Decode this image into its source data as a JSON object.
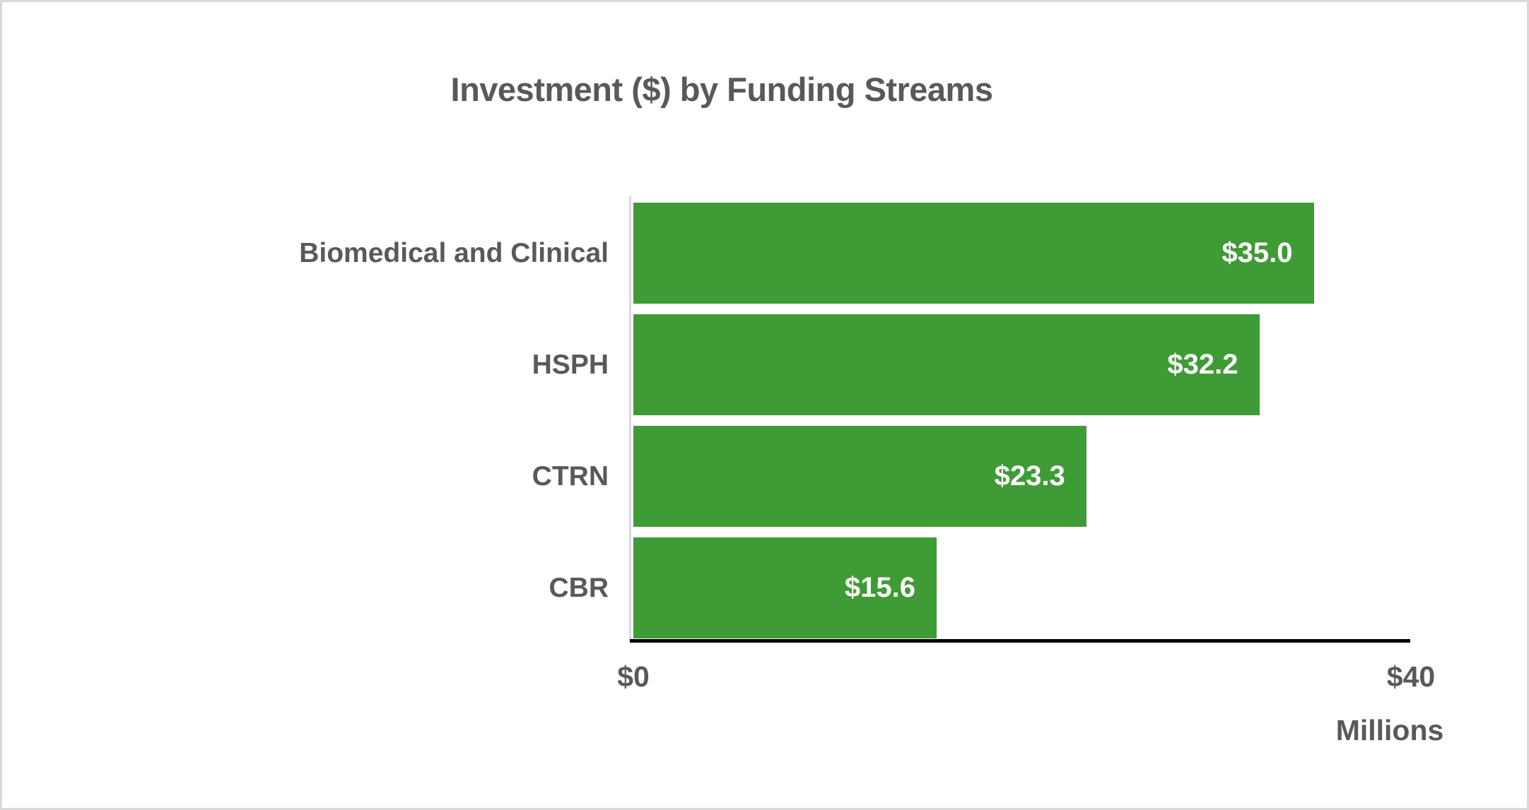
{
  "card": {
    "background_color": "#ffffff",
    "border_color": "#d9d9d9"
  },
  "chart_data": {
    "type": "bar",
    "orientation": "horizontal",
    "title": "Investment ($) by Funding Streams",
    "categories": [
      "Biomedical and Clinical",
      "HSPH",
      "CTRN",
      "CBR"
    ],
    "values": [
      35.0,
      32.2,
      23.3,
      15.6
    ],
    "value_labels": [
      "$35.0",
      "$32.2",
      "$23.3",
      "$15.6"
    ],
    "xlim": [
      0,
      40
    ],
    "x_ticks": [
      {
        "value": 0,
        "label": "$0"
      },
      {
        "value": 40,
        "label": "$40"
      }
    ],
    "axis_unit_label": "Millions",
    "bar_color": "#3f9b35",
    "value_label_color": "#ffffff",
    "text_color": "#595959",
    "axis_line_color": "#000000",
    "category_axis_line_color": "#d9d9d9",
    "grid": "off",
    "legend": "none"
  }
}
